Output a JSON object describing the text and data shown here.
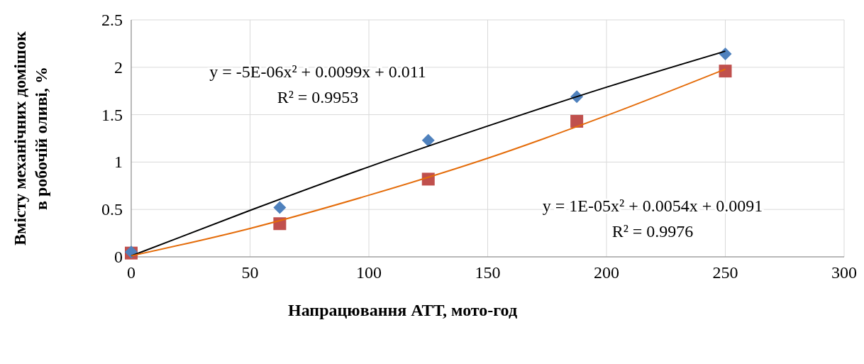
{
  "chart_data": {
    "type": "scatter",
    "xlabel": "Напрацювання АТТ, мото-год",
    "ylabel": "Вмісту механічних домішок\nв робочій оливі, %",
    "xlim": [
      0,
      300
    ],
    "xticks": [
      0,
      50,
      100,
      150,
      200,
      250,
      300
    ],
    "ylim": [
      0,
      2.5
    ],
    "yticks": [
      0,
      0.5,
      1,
      1.5,
      2,
      2.5
    ],
    "grid": true,
    "series": [
      {
        "type": "line",
        "color": "#000000",
        "marker": "none",
        "x": [
          0,
          50,
          100,
          150,
          200,
          250
        ],
        "values": [
          0.01,
          0.49,
          0.95,
          1.38,
          1.79,
          2.17
        ]
      },
      {
        "type": "line",
        "color": "#e46c0a",
        "marker": "none",
        "x": [
          0,
          50,
          100,
          150,
          200,
          250
        ],
        "values": [
          0.01,
          0.3,
          0.65,
          1.04,
          1.49,
          1.98
        ]
      },
      {
        "color": "#c0504d",
        "marker": "square",
        "x": [
          0,
          62.5,
          125,
          187.5,
          250
        ],
        "values": [
          0.04,
          0.35,
          0.82,
          1.43,
          1.96
        ]
      },
      {
        "color": "#4f81bd",
        "marker": "diamond",
        "x": [
          0,
          62.5,
          125,
          187.5,
          250
        ],
        "values": [
          0.05,
          0.52,
          1.23,
          1.69,
          2.14
        ]
      }
    ],
    "annotations": [
      "y = -5E-06x² + 0.0099x + 0.011",
      "R² = 0.9953",
      "y = 1E-05x² + 0.0054x + 0.0091",
      "R² = 0.9976"
    ]
  }
}
